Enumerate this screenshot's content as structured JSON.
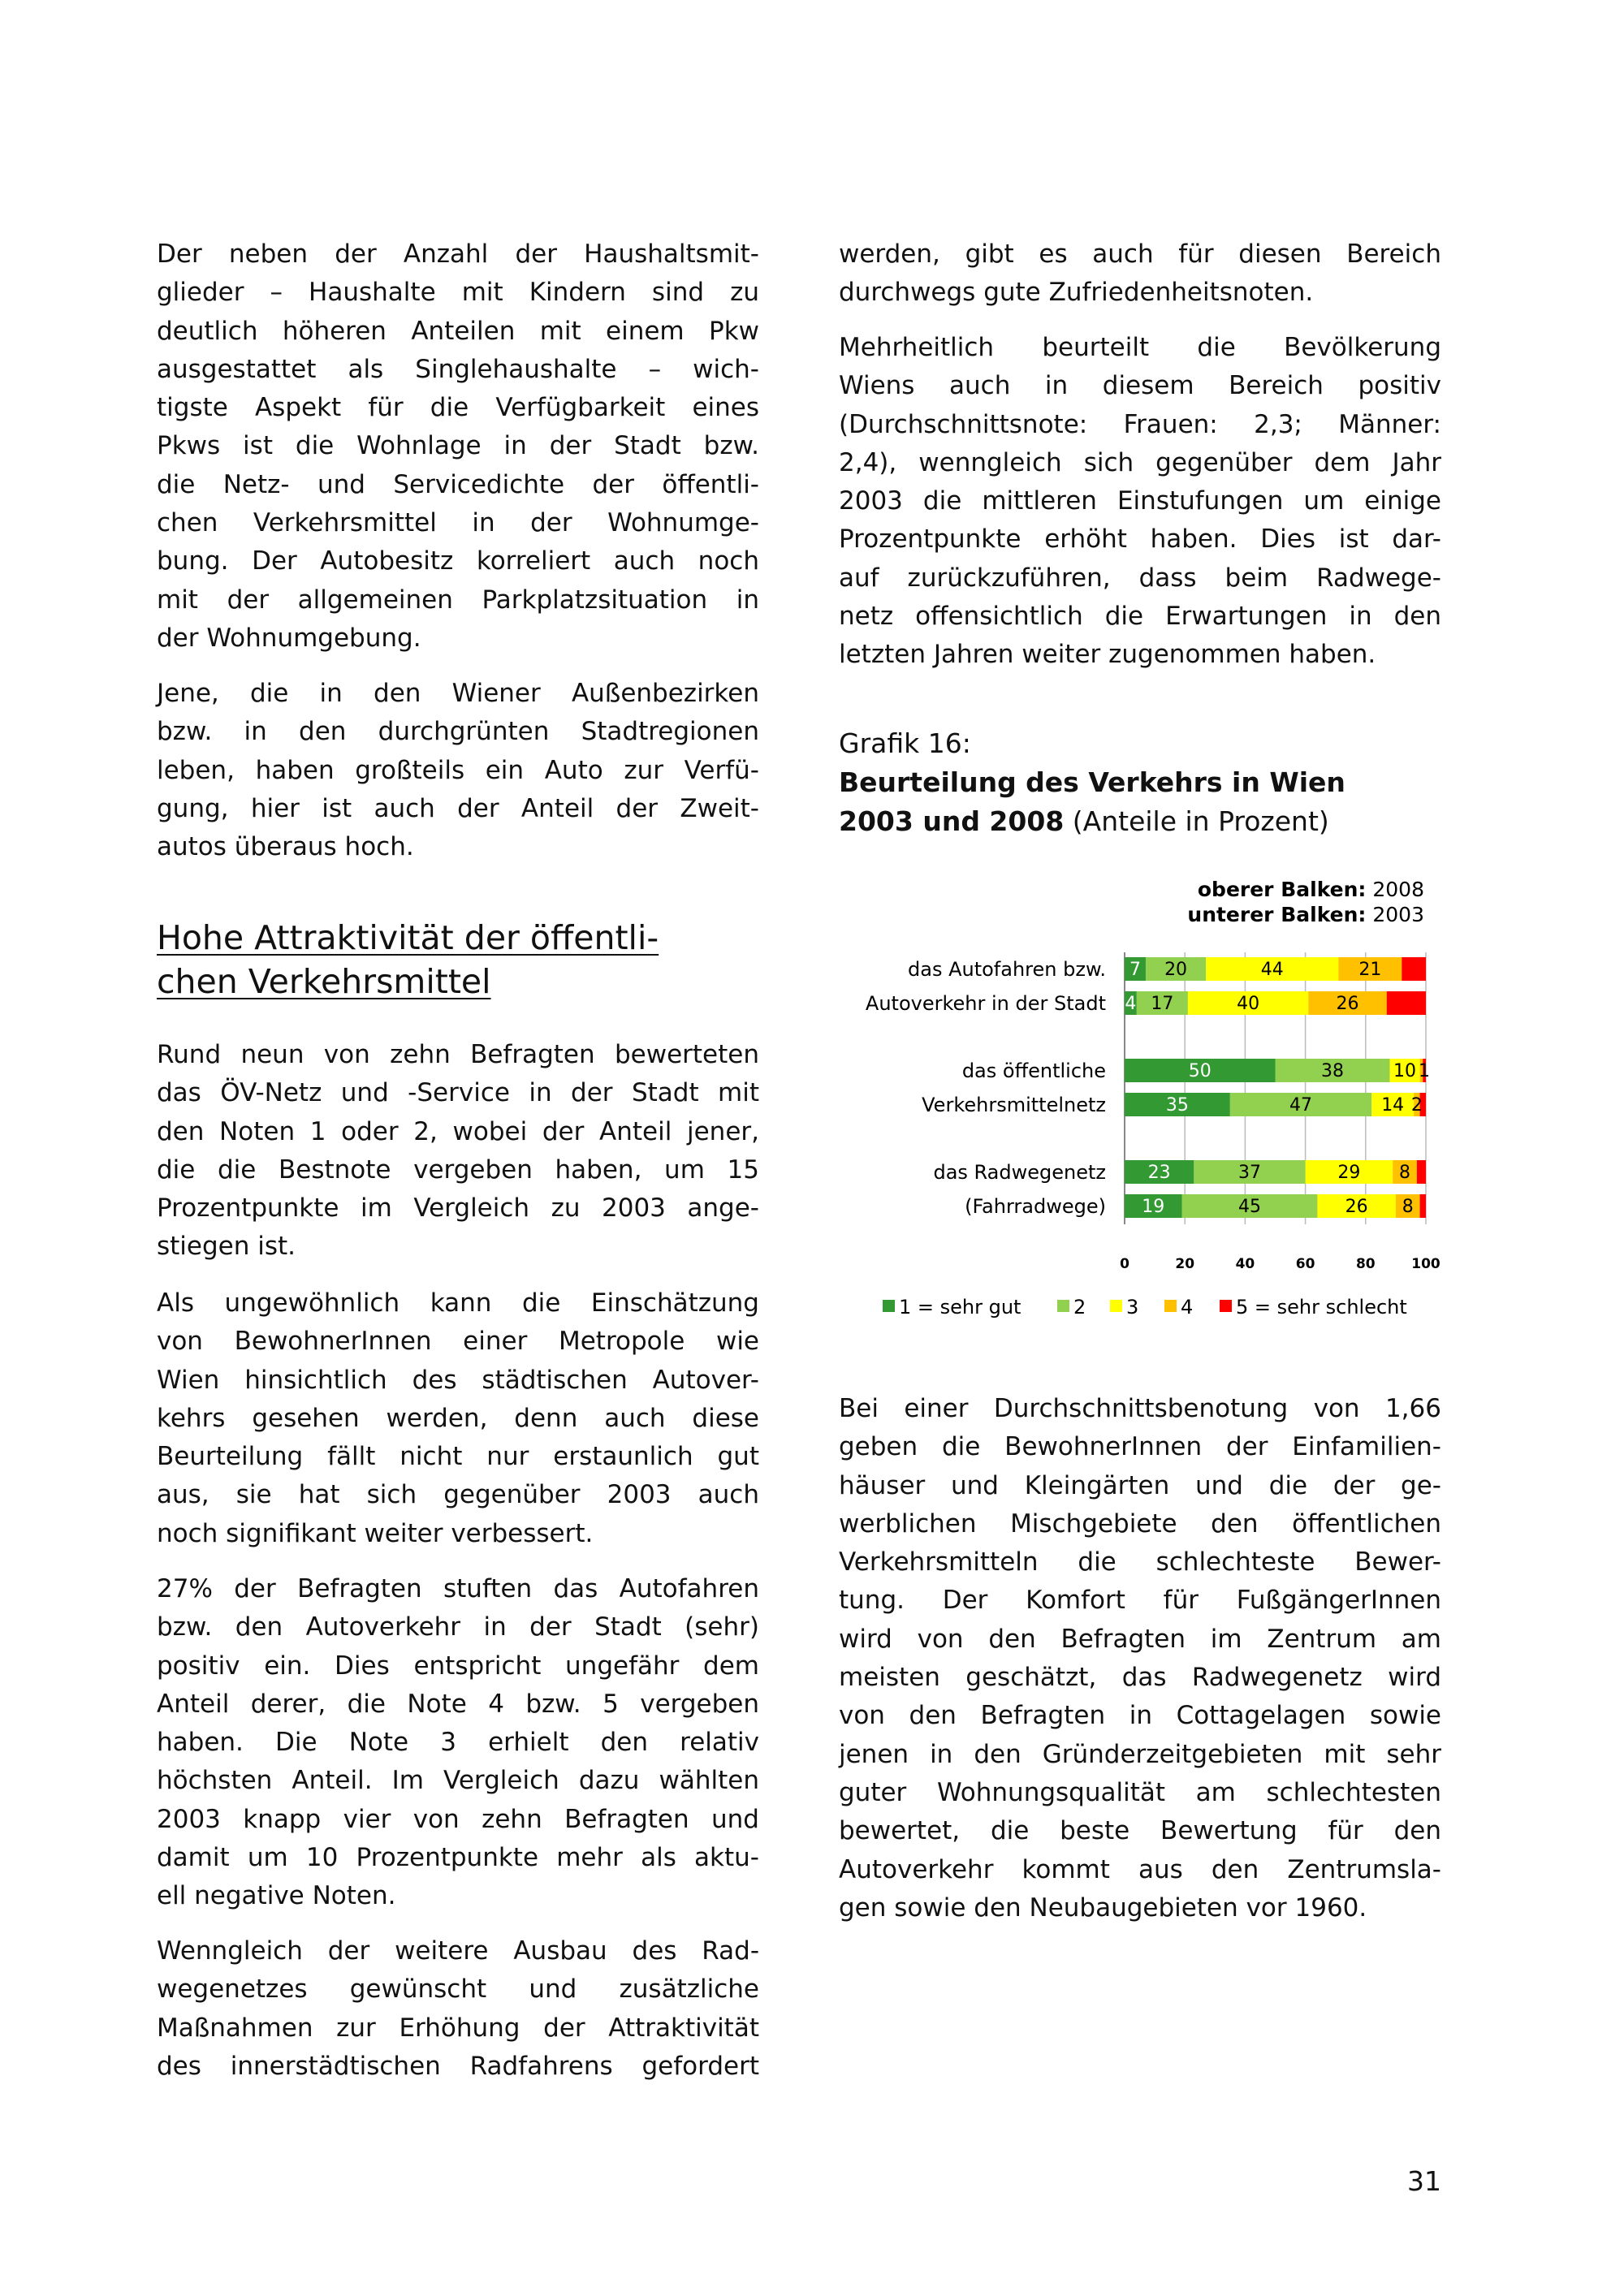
{
  "left_column": {
    "paragraphs_top": [
      [
        "Der neben der Anzahl der Haushaltsmit-",
        "glieder – Haushalte mit Kindern sind zu",
        "deutlich höheren Anteilen mit einem Pkw",
        "ausgestattet als Singlehaushalte – wich-",
        "tigste Aspekt für die Verfügbarkeit eines",
        "Pkws ist die Wohnlage in der Stadt bzw.",
        "die Netz- und Servicedichte der öffentli-",
        "chen Verkehrsmittel in der Wohnumge-",
        "bung. Der Autobesitz korreliert auch noch",
        "mit der allgemeinen Parkplatzsituation in",
        "der Wohnumgebung."
      ],
      [
        "Jene, die in den Wiener Außenbezirken",
        "bzw. in den durchgrünten Stadtregionen",
        "leben, haben großteils ein Auto zur Verfü-",
        "gung, hier ist auch der Anteil der Zweit-",
        "autos überaus hoch."
      ]
    ],
    "heading": [
      "Hohe Attraktivität der öffentli-",
      "chen Verkehrsmittel"
    ],
    "paragraphs_bottom": [
      [
        "Rund neun von zehn Befragten bewerteten",
        "das ÖV-Netz und -Service in der Stadt mit",
        "den Noten 1 oder 2, wobei der Anteil jener,",
        "die die Bestnote vergeben haben, um 15",
        "Prozentpunkte im Vergleich zu 2003 ange-",
        "stiegen ist."
      ],
      [
        "Als ungewöhnlich kann die Einschätzung",
        "von BewohnerInnen einer Metropole wie",
        "Wien hinsichtlich des städtischen Autover-",
        "kehrs gesehen werden, denn auch diese",
        "Beurteilung fällt nicht nur erstaunlich gut",
        "aus, sie hat sich gegenüber 2003 auch",
        "noch signifikant weiter verbessert."
      ],
      [
        "27% der Befragten stuften das Autofahren",
        "bzw. den Autoverkehr in der Stadt (sehr)",
        "positiv ein. Dies entspricht ungefähr dem",
        "Anteil derer, die Note 4 bzw. 5 vergeben",
        "haben. Die  Note 3 erhielt den relativ",
        "höchsten Anteil. Im Vergleich dazu wählten",
        "2003 knapp vier von zehn Befragten und",
        "damit um 10 Prozentpunkte mehr als aktu-",
        "ell negative Noten."
      ],
      [
        "Wenngleich der weitere Ausbau des Rad-",
        "wegenetzes gewünscht und zusätzliche",
        "Maßnahmen zur Erhöhung der Attraktivität",
        "des innerstädtischen Radfahrens gefordert"
      ]
    ]
  },
  "right_column": {
    "paragraphs_top": [
      [
        "werden, gibt es auch für diesen Bereich",
        "durchwegs gute Zufriedenheitsnoten."
      ],
      [
        "Mehrheitlich beurteilt die Bevölkerung",
        "Wiens auch in diesem Bereich positiv",
        "(Durchschnittsnote: Frauen: 2,3; Männer:",
        "2,4), wenngleich sich gegenüber dem Jahr",
        "2003 die mittleren Einstufungen um einige",
        "Prozentpunkte erhöht haben. Dies ist dar-",
        "auf zurückzuführen, dass beim Radwege-",
        "netz offensichtlich die Erwartungen in den",
        "letzten Jahren weiter zugenommen haben."
      ]
    ],
    "caption": {
      "label": "Grafik 16:",
      "title_line1": "Beurteilung des Verkehrs in Wien",
      "title_line2": "2003 und 2008",
      "subtitle": " (Anteile in Prozent)"
    },
    "paragraphs_bottom": [
      [
        "Bei einer Durchschnittsbenotung von 1,66",
        "geben die BewohnerInnen der Einfamilien-",
        "häuser und Kleingärten und die der ge-",
        "werblichen Mischgebiete den öffentlichen",
        "Verkehrsmitteln die schlechteste Bewer-",
        "tung. Der Komfort für FußgängerInnen",
        "wird von den Befragten im Zentrum am",
        "meisten geschätzt, das Radwegenetz wird",
        "von den Befragten in Cottagelagen sowie",
        "jenen in den Gründerzeitgebieten mit sehr",
        "guter Wohnungsqualität am schlechtesten",
        "bewertet, die beste Bewertung für den",
        "Autoverkehr kommt aus den Zentrumsla-",
        "gen sowie den Neubaugebieten vor 1960."
      ]
    ]
  },
  "page_number": "31",
  "chart_data": {
    "type": "bar",
    "orientation": "horizontal-stacked-100",
    "note": {
      "top_bold": "oberer Balken:",
      "top_value": "2008",
      "bottom_bold": "unterer Balken:",
      "bottom_value": "2003"
    },
    "categories": [
      {
        "label": [
          "das Autofahren bzw.",
          "Autoverkehr in der Stadt"
        ],
        "bars": [
          {
            "year": "2008",
            "values": [
              7,
              20,
              44,
              21,
              8
            ],
            "labels": [
              "7",
              "20",
              "44",
              "21",
              ""
            ]
          },
          {
            "year": "2003",
            "values": [
              4,
              17,
              40,
              26,
              13
            ],
            "labels": [
              "4",
              "17",
              "40",
              "26",
              ""
            ]
          }
        ]
      },
      {
        "label": [
          "das öffentliche",
          "Verkehrsmittelnetz"
        ],
        "bars": [
          {
            "year": "2008",
            "values": [
              50,
              38,
              10,
              1,
              1
            ],
            "labels": [
              "50",
              "38",
              "10",
              "1",
              ""
            ]
          },
          {
            "year": "2003",
            "values": [
              35,
              47,
              14,
              2,
              2
            ],
            "labels": [
              "35",
              "47",
              "14",
              "2",
              ""
            ]
          }
        ]
      },
      {
        "label": [
          "das Radwegenetz",
          "(Fahrradwege)"
        ],
        "bars": [
          {
            "year": "2008",
            "values": [
              23,
              37,
              29,
              8,
              3
            ],
            "labels": [
              "23",
              "37",
              "29",
              "8",
              ""
            ]
          },
          {
            "year": "2003",
            "values": [
              19,
              45,
              26,
              8,
              2
            ],
            "labels": [
              "19",
              "45",
              "26",
              "8",
              ""
            ]
          }
        ]
      }
    ],
    "series": [
      {
        "name": "1 = sehr gut",
        "color": "#339933",
        "label_color": "#ffffff"
      },
      {
        "name": "2",
        "color": "#92d050",
        "label_color": "#000000"
      },
      {
        "name": "3",
        "color": "#ffff00",
        "label_color": "#000000"
      },
      {
        "name": "4",
        "color": "#ffc000",
        "label_color": "#000000"
      },
      {
        "name": "5 = sehr schlecht",
        "color": "#ff0000",
        "label_color": "#000000"
      }
    ],
    "xlim": [
      0,
      100
    ],
    "xticks": [
      "0",
      "20",
      "40",
      "60",
      "80",
      "100"
    ],
    "grid": true,
    "legend_position": "bottom"
  }
}
